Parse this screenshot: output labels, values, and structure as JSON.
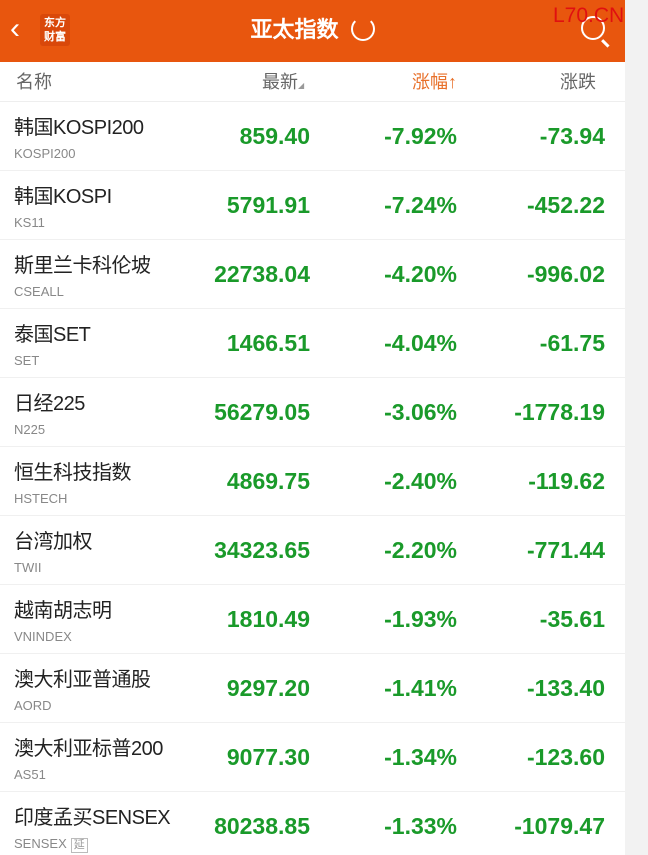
{
  "header": {
    "title": "亚太指数",
    "logo_text": "东方财富",
    "watermark": "L70.CN"
  },
  "columns": {
    "name": "名称",
    "last": "最新",
    "last_sort": "◢",
    "pct": "涨幅↑",
    "chg": "涨跌"
  },
  "colors": {
    "header": "#e8560e",
    "down": "#1a9a2a"
  },
  "rows": [
    {
      "name": "韩国KOSPI200",
      "code": "KOSPI200",
      "last": "859.40",
      "pct": "-7.92%",
      "chg": "-73.94"
    },
    {
      "name": "韩国KOSPI",
      "code": "KS11",
      "last": "5791.91",
      "pct": "-7.24%",
      "chg": "-452.22"
    },
    {
      "name": "斯里兰卡科伦坡",
      "code": "CSEALL",
      "last": "22738.04",
      "pct": "-4.20%",
      "chg": "-996.02"
    },
    {
      "name": "泰国SET",
      "code": "SET",
      "last": "1466.51",
      "pct": "-4.04%",
      "chg": "-61.75"
    },
    {
      "name": "日经225",
      "code": "N225",
      "last": "56279.05",
      "pct": "-3.06%",
      "chg": "-1778.19"
    },
    {
      "name": "恒生科技指数",
      "code": "HSTECH",
      "last": "4869.75",
      "pct": "-2.40%",
      "chg": "-119.62"
    },
    {
      "name": "台湾加权",
      "code": "TWII",
      "last": "34323.65",
      "pct": "-2.20%",
      "chg": "-771.44"
    },
    {
      "name": "越南胡志明",
      "code": "VNINDEX",
      "last": "1810.49",
      "pct": "-1.93%",
      "chg": "-35.61"
    },
    {
      "name": "澳大利亚普通股",
      "code": "AORD",
      "last": "9297.20",
      "pct": "-1.41%",
      "chg": "-133.40"
    },
    {
      "name": "澳大利亚标普200",
      "code": "AS51",
      "last": "9077.30",
      "pct": "-1.34%",
      "chg": "-123.60"
    },
    {
      "name": "印度孟买SENSEX",
      "code": "SENSEX",
      "tag": "延",
      "last": "80238.85",
      "pct": "-1.33%",
      "chg": "-1079.47"
    }
  ]
}
